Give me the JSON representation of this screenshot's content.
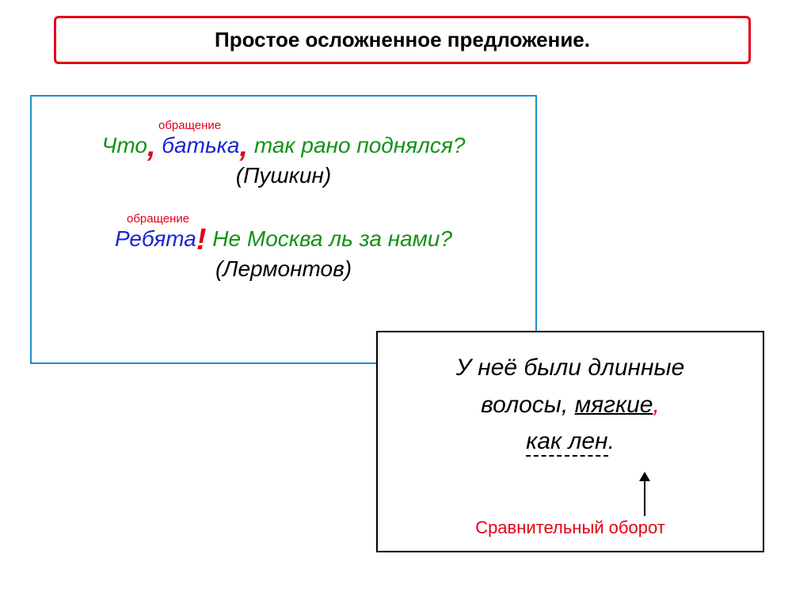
{
  "title": {
    "text": "Простое осложненное предложение.",
    "border_color": "#e30016",
    "text_color": "#000000"
  },
  "box1": {
    "border_color": "#1e8fcf",
    "label_text": "обращение",
    "label_color": "#e30016",
    "ex1": {
      "w1": "Что",
      "c1": ",",
      "w2": " батька",
      "c2": ",",
      "w3": " так рано поднялся?",
      "author": "(Пушкин)",
      "w1_color": "#149118",
      "c1_color": "#e30016",
      "w2_color": "#1826cf",
      "c2_color": "#e30016",
      "w3_color": "#149118",
      "author_color": "#000000"
    },
    "ex2": {
      "w1": "Ребята",
      "excl": "!",
      "w2": " Не Москва ль за нами?",
      "author": "(Лермонтов)",
      "w1_color": "#1826cf",
      "excl_color": "#e30016",
      "w2_color": "#149118",
      "author_color": "#000000"
    }
  },
  "box2": {
    "border_color": "#000000",
    "line1": "У неё были длинные",
    "line2a": "волосы",
    "line2b": ", ",
    "line2c": "мягкие",
    "line2d": ",",
    "line3a": "как лен",
    "line3b": ".",
    "text_color": "#000000",
    "punct_color": "#e30016",
    "compare_label": "Сравнительный оборот",
    "compare_color": "#e30016"
  }
}
